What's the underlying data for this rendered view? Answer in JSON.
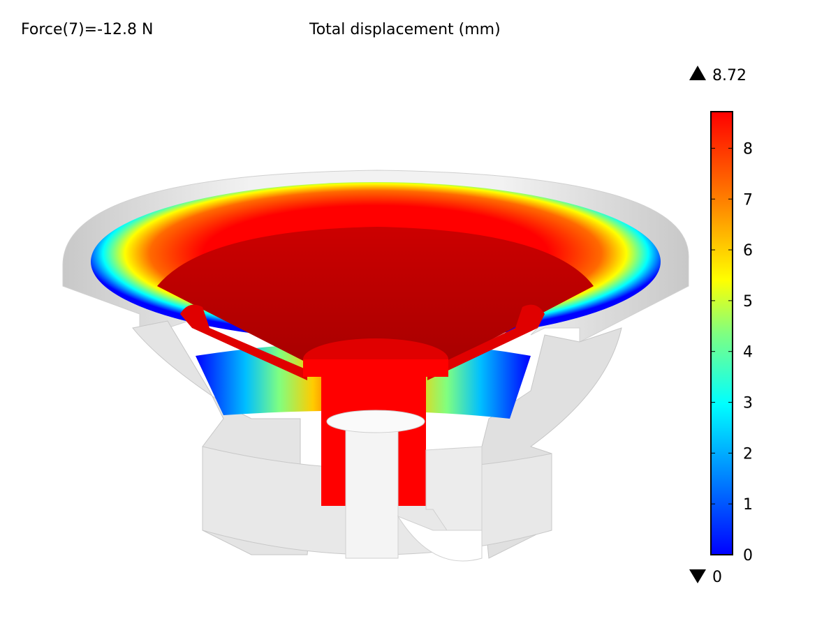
{
  "header": {
    "left_text": "Force(7)=-12.8 N",
    "title": "Total displacement (mm)"
  },
  "colorbar": {
    "max_label": "8.72",
    "min_label": "0",
    "ticks": [
      "0",
      "1",
      "2",
      "3",
      "4",
      "5",
      "6",
      "7",
      "8"
    ],
    "min": 0,
    "max": 8.72,
    "colormap": [
      "#0000ff",
      "#0080ff",
      "#00ffff",
      "#80ff80",
      "#ffff00",
      "#ff8000",
      "#ff0000"
    ]
  },
  "colors": {
    "housing": "#e6e6e6",
    "housing_shadow": "#b0b0b0",
    "max_displacement": "#ff0000",
    "zero_displacement": "#0000ff"
  }
}
